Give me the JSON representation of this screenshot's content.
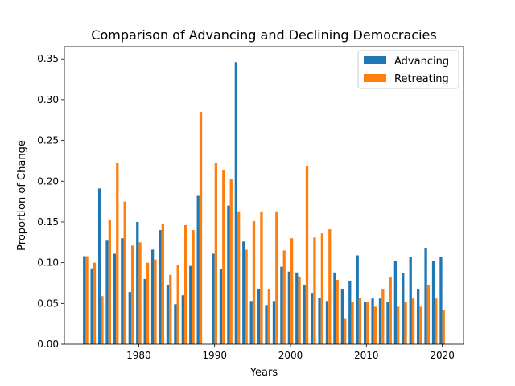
{
  "chart_data": {
    "type": "bar",
    "title": "Comparison of Advancing and Declining Democracies",
    "xlabel": "Years",
    "ylabel": "Proportion of Change",
    "xlim": [
      1970.2,
      2022.8
    ],
    "ylim": [
      0,
      0.365
    ],
    "xticks": [
      1980,
      1990,
      2000,
      2010,
      2020
    ],
    "xtick_labels": [
      "1980",
      "1990",
      "2000",
      "2010",
      "2020"
    ],
    "yticks": [
      0.0,
      0.05,
      0.1,
      0.15,
      0.2,
      0.25,
      0.3,
      0.35
    ],
    "ytick_labels": [
      "0.00",
      "0.05",
      "0.10",
      "0.15",
      "0.20",
      "0.25",
      "0.30",
      "0.35"
    ],
    "grid": false,
    "legend_position": "top-right",
    "x": [
      1973,
      1974,
      1975,
      1976,
      1977,
      1978,
      1979,
      1980,
      1981,
      1982,
      1983,
      1984,
      1985,
      1986,
      1987,
      1988,
      1989,
      1990,
      1991,
      1992,
      1993,
      1994,
      1995,
      1996,
      1997,
      1998,
      1999,
      2000,
      2001,
      2002,
      2003,
      2004,
      2005,
      2006,
      2007,
      2008,
      2009,
      2010,
      2011,
      2012,
      2013,
      2014,
      2015,
      2016,
      2017,
      2018,
      2019,
      2020
    ],
    "series": [
      {
        "name": "Advancing",
        "color": "#1f77b4",
        "values": [
          0.108,
          0.093,
          0.191,
          0.127,
          0.111,
          0.13,
          0.064,
          0.15,
          0.08,
          0.116,
          0.14,
          0.073,
          0.049,
          0.06,
          0.096,
          0.182,
          null,
          0.111,
          0.092,
          0.17,
          0.346,
          0.126,
          0.053,
          0.068,
          0.048,
          0.053,
          0.095,
          0.089,
          0.088,
          0.073,
          0.063,
          0.057,
          0.053,
          0.088,
          0.067,
          0.078,
          0.109,
          0.052,
          0.056,
          0.056,
          0.052,
          0.102,
          0.087,
          0.107,
          0.067,
          0.118,
          0.102,
          0.107
        ]
      },
      {
        "name": "Retreating",
        "color": "#ff7f0e",
        "values": [
          0.108,
          0.1,
          0.059,
          0.153,
          0.222,
          0.175,
          0.121,
          0.125,
          0.1,
          0.104,
          0.147,
          0.085,
          0.097,
          0.146,
          0.14,
          0.285,
          null,
          0.222,
          0.214,
          0.203,
          0.162,
          0.116,
          0.151,
          0.162,
          0.068,
          0.162,
          0.115,
          0.13,
          0.083,
          0.218,
          0.131,
          0.136,
          0.141,
          0.079,
          0.031,
          0.052,
          0.057,
          0.052,
          0.046,
          0.067,
          0.082,
          0.046,
          0.052,
          0.056,
          0.046,
          0.072,
          0.056,
          0.042
        ]
      }
    ]
  }
}
